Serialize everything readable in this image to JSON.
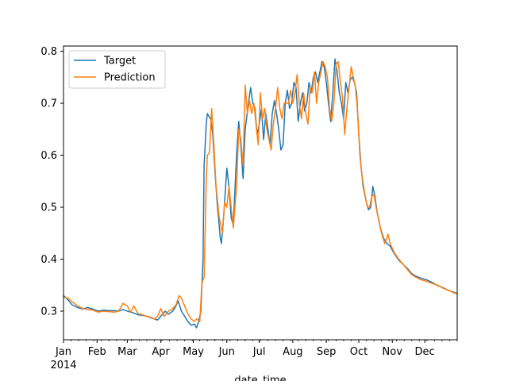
{
  "chart_data": {
    "type": "line",
    "title": "",
    "xlabel": "date_time",
    "ylabel": "",
    "x_range": [
      "2014-01-01",
      "2014-12-31"
    ],
    "ylim": [
      0.245,
      0.81
    ],
    "grid": false,
    "legend_position": "top-left",
    "x_major_ticks": [
      {
        "date": "2014-01-01",
        "label": "Jan"
      },
      {
        "date": "2014-02-01",
        "label": "Feb"
      },
      {
        "date": "2014-03-01",
        "label": "Mar"
      },
      {
        "date": "2014-04-01",
        "label": "Apr"
      },
      {
        "date": "2014-05-01",
        "label": "May"
      },
      {
        "date": "2014-06-01",
        "label": "Jun"
      },
      {
        "date": "2014-07-01",
        "label": "Jul"
      },
      {
        "date": "2014-08-01",
        "label": "Aug"
      },
      {
        "date": "2014-09-01",
        "label": "Sep"
      },
      {
        "date": "2014-10-01",
        "label": "Oct"
      },
      {
        "date": "2014-11-01",
        "label": "Nov"
      },
      {
        "date": "2014-12-01",
        "label": "Dec"
      }
    ],
    "x_year_label": "2014",
    "y_ticks": [
      0.3,
      0.4,
      0.5,
      0.6,
      0.7,
      0.8
    ],
    "y_tick_labels": [
      "0.3",
      "0.4",
      "0.5",
      "0.6",
      "0.7",
      "0.8"
    ],
    "series": [
      {
        "name": "Target",
        "color": "#1f77b4",
        "points": [
          [
            "2014-01-01",
            0.33
          ],
          [
            "2014-01-05",
            0.322
          ],
          [
            "2014-01-09",
            0.312
          ],
          [
            "2014-01-14",
            0.307
          ],
          [
            "2014-01-19",
            0.304
          ],
          [
            "2014-01-23",
            0.307
          ],
          [
            "2014-01-28",
            0.304
          ],
          [
            "2014-02-02",
            0.3
          ],
          [
            "2014-02-07",
            0.302
          ],
          [
            "2014-02-12",
            0.301
          ],
          [
            "2014-02-17",
            0.301
          ],
          [
            "2014-02-21",
            0.3
          ],
          [
            "2014-02-25",
            0.303
          ],
          [
            "2014-03-01",
            0.3
          ],
          [
            "2014-03-06",
            0.297
          ],
          [
            "2014-03-11",
            0.293
          ],
          [
            "2014-03-15",
            0.292
          ],
          [
            "2014-03-19",
            0.29
          ],
          [
            "2014-03-23",
            0.287
          ],
          [
            "2014-03-26",
            0.285
          ],
          [
            "2014-03-29",
            0.283
          ],
          [
            "2014-04-02",
            0.293
          ],
          [
            "2014-04-05",
            0.3
          ],
          [
            "2014-04-08",
            0.294
          ],
          [
            "2014-04-12",
            0.3
          ],
          [
            "2014-04-15",
            0.31
          ],
          [
            "2014-04-17",
            0.32
          ],
          [
            "2014-04-20",
            0.3
          ],
          [
            "2014-04-23",
            0.29
          ],
          [
            "2014-04-26",
            0.28
          ],
          [
            "2014-04-29",
            0.273
          ],
          [
            "2014-05-02",
            0.275
          ],
          [
            "2014-05-04",
            0.268
          ],
          [
            "2014-05-06",
            0.28
          ],
          [
            "2014-05-08",
            0.3
          ],
          [
            "2014-05-10",
            0.4
          ],
          [
            "2014-05-11",
            0.58
          ],
          [
            "2014-05-13",
            0.66
          ],
          [
            "2014-05-14",
            0.68
          ],
          [
            "2014-05-17",
            0.67
          ],
          [
            "2014-05-19",
            0.64
          ],
          [
            "2014-05-21",
            0.57
          ],
          [
            "2014-05-23",
            0.51
          ],
          [
            "2014-05-26",
            0.44
          ],
          [
            "2014-05-27",
            0.43
          ],
          [
            "2014-05-29",
            0.48
          ],
          [
            "2014-06-01",
            0.575
          ],
          [
            "2014-06-03",
            0.54
          ],
          [
            "2014-06-05",
            0.48
          ],
          [
            "2014-06-07",
            0.465
          ],
          [
            "2014-06-10",
            0.6
          ],
          [
            "2014-06-12",
            0.665
          ],
          [
            "2014-06-14",
            0.62
          ],
          [
            "2014-06-16",
            0.555
          ],
          [
            "2014-06-18",
            0.65
          ],
          [
            "2014-06-21",
            0.7
          ],
          [
            "2014-06-23",
            0.73
          ],
          [
            "2014-06-25",
            0.7
          ],
          [
            "2014-06-27",
            0.69
          ],
          [
            "2014-06-29",
            0.64
          ],
          [
            "2014-07-01",
            0.66
          ],
          [
            "2014-07-03",
            0.69
          ],
          [
            "2014-07-05",
            0.63
          ],
          [
            "2014-07-07",
            0.68
          ],
          [
            "2014-07-09",
            0.65
          ],
          [
            "2014-07-11",
            0.62
          ],
          [
            "2014-07-13",
            0.68
          ],
          [
            "2014-07-15",
            0.705
          ],
          [
            "2014-07-17",
            0.68
          ],
          [
            "2014-07-19",
            0.65
          ],
          [
            "2014-07-21",
            0.61
          ],
          [
            "2014-07-23",
            0.62
          ],
          [
            "2014-07-25",
            0.7
          ],
          [
            "2014-07-27",
            0.725
          ],
          [
            "2014-07-29",
            0.69
          ],
          [
            "2014-07-31",
            0.7
          ],
          [
            "2014-08-02",
            0.74
          ],
          [
            "2014-08-04",
            0.73
          ],
          [
            "2014-08-06",
            0.665
          ],
          [
            "2014-08-08",
            0.7
          ],
          [
            "2014-08-10",
            0.72
          ],
          [
            "2014-08-12",
            0.685
          ],
          [
            "2014-08-14",
            0.7
          ],
          [
            "2014-08-16",
            0.74
          ],
          [
            "2014-08-18",
            0.72
          ],
          [
            "2014-08-20",
            0.75
          ],
          [
            "2014-08-22",
            0.76
          ],
          [
            "2014-08-24",
            0.74
          ],
          [
            "2014-08-26",
            0.76
          ],
          [
            "2014-08-28",
            0.78
          ],
          [
            "2014-08-30",
            0.77
          ],
          [
            "2014-09-01",
            0.74
          ],
          [
            "2014-09-03",
            0.7
          ],
          [
            "2014-09-05",
            0.665
          ],
          [
            "2014-09-07",
            0.72
          ],
          [
            "2014-09-09",
            0.785
          ],
          [
            "2014-09-11",
            0.76
          ],
          [
            "2014-09-13",
            0.72
          ],
          [
            "2014-09-15",
            0.7
          ],
          [
            "2014-09-17",
            0.67
          ],
          [
            "2014-09-19",
            0.74
          ],
          [
            "2014-09-21",
            0.72
          ],
          [
            "2014-09-23",
            0.745
          ],
          [
            "2014-09-25",
            0.75
          ],
          [
            "2014-09-27",
            0.74
          ],
          [
            "2014-09-29",
            0.72
          ],
          [
            "2014-10-01",
            0.64
          ],
          [
            "2014-10-03",
            0.58
          ],
          [
            "2014-10-05",
            0.54
          ],
          [
            "2014-10-08",
            0.51
          ],
          [
            "2014-10-10",
            0.495
          ],
          [
            "2014-10-12",
            0.5
          ],
          [
            "2014-10-14",
            0.54
          ],
          [
            "2014-10-16",
            0.52
          ],
          [
            "2014-10-18",
            0.49
          ],
          [
            "2014-10-21",
            0.46
          ],
          [
            "2014-10-24",
            0.44
          ],
          [
            "2014-10-27",
            0.43
          ],
          [
            "2014-10-30",
            0.425
          ],
          [
            "2014-11-03",
            0.41
          ],
          [
            "2014-11-07",
            0.398
          ],
          [
            "2014-11-11",
            0.39
          ],
          [
            "2014-11-15",
            0.382
          ],
          [
            "2014-11-19",
            0.372
          ],
          [
            "2014-11-23",
            0.367
          ],
          [
            "2014-11-28",
            0.363
          ],
          [
            "2014-12-03",
            0.36
          ],
          [
            "2014-12-08",
            0.355
          ],
          [
            "2014-12-13",
            0.349
          ],
          [
            "2014-12-18",
            0.345
          ],
          [
            "2014-12-23",
            0.34
          ],
          [
            "2014-12-27",
            0.337
          ],
          [
            "2014-12-31",
            0.334
          ]
        ]
      },
      {
        "name": "Prediction",
        "color": "#ff7f0e",
        "points": [
          [
            "2014-01-01",
            0.327
          ],
          [
            "2014-01-05",
            0.325
          ],
          [
            "2014-01-09",
            0.318
          ],
          [
            "2014-01-14",
            0.31
          ],
          [
            "2014-01-19",
            0.305
          ],
          [
            "2014-01-23",
            0.303
          ],
          [
            "2014-01-28",
            0.302
          ],
          [
            "2014-02-02",
            0.298
          ],
          [
            "2014-02-07",
            0.3
          ],
          [
            "2014-02-12",
            0.299
          ],
          [
            "2014-02-17",
            0.298
          ],
          [
            "2014-02-21",
            0.3
          ],
          [
            "2014-02-25",
            0.315
          ],
          [
            "2014-03-01",
            0.31
          ],
          [
            "2014-03-04",
            0.298
          ],
          [
            "2014-03-07",
            0.31
          ],
          [
            "2014-03-11",
            0.295
          ],
          [
            "2014-03-15",
            0.293
          ],
          [
            "2014-03-19",
            0.29
          ],
          [
            "2014-03-23",
            0.288
          ],
          [
            "2014-03-26",
            0.285
          ],
          [
            "2014-03-29",
            0.29
          ],
          [
            "2014-04-01",
            0.305
          ],
          [
            "2014-04-04",
            0.29
          ],
          [
            "2014-04-08",
            0.3
          ],
          [
            "2014-04-12",
            0.305
          ],
          [
            "2014-04-15",
            0.312
          ],
          [
            "2014-04-18",
            0.33
          ],
          [
            "2014-04-20",
            0.325
          ],
          [
            "2014-04-23",
            0.31
          ],
          [
            "2014-04-26",
            0.295
          ],
          [
            "2014-04-29",
            0.285
          ],
          [
            "2014-05-02",
            0.28
          ],
          [
            "2014-05-04",
            0.285
          ],
          [
            "2014-05-07",
            0.28
          ],
          [
            "2014-05-09",
            0.355
          ],
          [
            "2014-05-11",
            0.365
          ],
          [
            "2014-05-13",
            0.55
          ],
          [
            "2014-05-14",
            0.6
          ],
          [
            "2014-05-16",
            0.605
          ],
          [
            "2014-05-18",
            0.69
          ],
          [
            "2014-05-20",
            0.62
          ],
          [
            "2014-05-22",
            0.54
          ],
          [
            "2014-05-25",
            0.48
          ],
          [
            "2014-05-28",
            0.45
          ],
          [
            "2014-05-30",
            0.51
          ],
          [
            "2014-06-01",
            0.5
          ],
          [
            "2014-06-03",
            0.54
          ],
          [
            "2014-06-05",
            0.5
          ],
          [
            "2014-06-07",
            0.46
          ],
          [
            "2014-06-10",
            0.54
          ],
          [
            "2014-06-12",
            0.65
          ],
          [
            "2014-06-14",
            0.63
          ],
          [
            "2014-06-16",
            0.58
          ],
          [
            "2014-06-18",
            0.735
          ],
          [
            "2014-06-20",
            0.68
          ],
          [
            "2014-06-22",
            0.705
          ],
          [
            "2014-06-24",
            0.68
          ],
          [
            "2014-06-26",
            0.7
          ],
          [
            "2014-06-28",
            0.66
          ],
          [
            "2014-06-30",
            0.62
          ],
          [
            "2014-07-02",
            0.72
          ],
          [
            "2014-07-04",
            0.67
          ],
          [
            "2014-07-06",
            0.69
          ],
          [
            "2014-07-08",
            0.65
          ],
          [
            "2014-07-10",
            0.63
          ],
          [
            "2014-07-12",
            0.61
          ],
          [
            "2014-07-14",
            0.66
          ],
          [
            "2014-07-16",
            0.69
          ],
          [
            "2014-07-18",
            0.73
          ],
          [
            "2014-07-20",
            0.69
          ],
          [
            "2014-07-22",
            0.67
          ],
          [
            "2014-07-24",
            0.7
          ],
          [
            "2014-07-26",
            0.7
          ],
          [
            "2014-07-28",
            0.7
          ],
          [
            "2014-07-30",
            0.725
          ],
          [
            "2014-08-01",
            0.7
          ],
          [
            "2014-08-03",
            0.72
          ],
          [
            "2014-08-05",
            0.755
          ],
          [
            "2014-08-07",
            0.7
          ],
          [
            "2014-08-09",
            0.67
          ],
          [
            "2014-08-11",
            0.72
          ],
          [
            "2014-08-13",
            0.68
          ],
          [
            "2014-08-15",
            0.66
          ],
          [
            "2014-08-17",
            0.73
          ],
          [
            "2014-08-19",
            0.72
          ],
          [
            "2014-08-21",
            0.76
          ],
          [
            "2014-08-23",
            0.7
          ],
          [
            "2014-08-25",
            0.74
          ],
          [
            "2014-08-27",
            0.76
          ],
          [
            "2014-08-29",
            0.78
          ],
          [
            "2014-08-31",
            0.77
          ],
          [
            "2014-09-02",
            0.75
          ],
          [
            "2014-09-04",
            0.69
          ],
          [
            "2014-09-06",
            0.665
          ],
          [
            "2014-09-08",
            0.7
          ],
          [
            "2014-09-10",
            0.775
          ],
          [
            "2014-09-12",
            0.78
          ],
          [
            "2014-09-14",
            0.74
          ],
          [
            "2014-09-16",
            0.71
          ],
          [
            "2014-09-18",
            0.64
          ],
          [
            "2014-09-20",
            0.69
          ],
          [
            "2014-09-22",
            0.73
          ],
          [
            "2014-09-24",
            0.77
          ],
          [
            "2014-09-26",
            0.75
          ],
          [
            "2014-09-28",
            0.73
          ],
          [
            "2014-09-30",
            0.68
          ],
          [
            "2014-10-02",
            0.6
          ],
          [
            "2014-10-04",
            0.56
          ],
          [
            "2014-10-07",
            0.52
          ],
          [
            "2014-10-09",
            0.5
          ],
          [
            "2014-10-11",
            0.5
          ],
          [
            "2014-10-13",
            0.52
          ],
          [
            "2014-10-15",
            0.525
          ],
          [
            "2014-10-17",
            0.5
          ],
          [
            "2014-10-20",
            0.47
          ],
          [
            "2014-10-22",
            0.45
          ],
          [
            "2014-10-25",
            0.43
          ],
          [
            "2014-10-28",
            0.448
          ],
          [
            "2014-10-30",
            0.43
          ],
          [
            "2014-11-03",
            0.412
          ],
          [
            "2014-11-07",
            0.4
          ],
          [
            "2014-11-11",
            0.39
          ],
          [
            "2014-11-15",
            0.38
          ],
          [
            "2014-11-19",
            0.37
          ],
          [
            "2014-11-23",
            0.365
          ],
          [
            "2014-11-28",
            0.36
          ],
          [
            "2014-12-03",
            0.357
          ],
          [
            "2014-12-08",
            0.353
          ],
          [
            "2014-12-13",
            0.35
          ],
          [
            "2014-12-18",
            0.344
          ],
          [
            "2014-12-23",
            0.34
          ],
          [
            "2014-12-27",
            0.336
          ],
          [
            "2014-12-31",
            0.333
          ]
        ]
      }
    ]
  }
}
